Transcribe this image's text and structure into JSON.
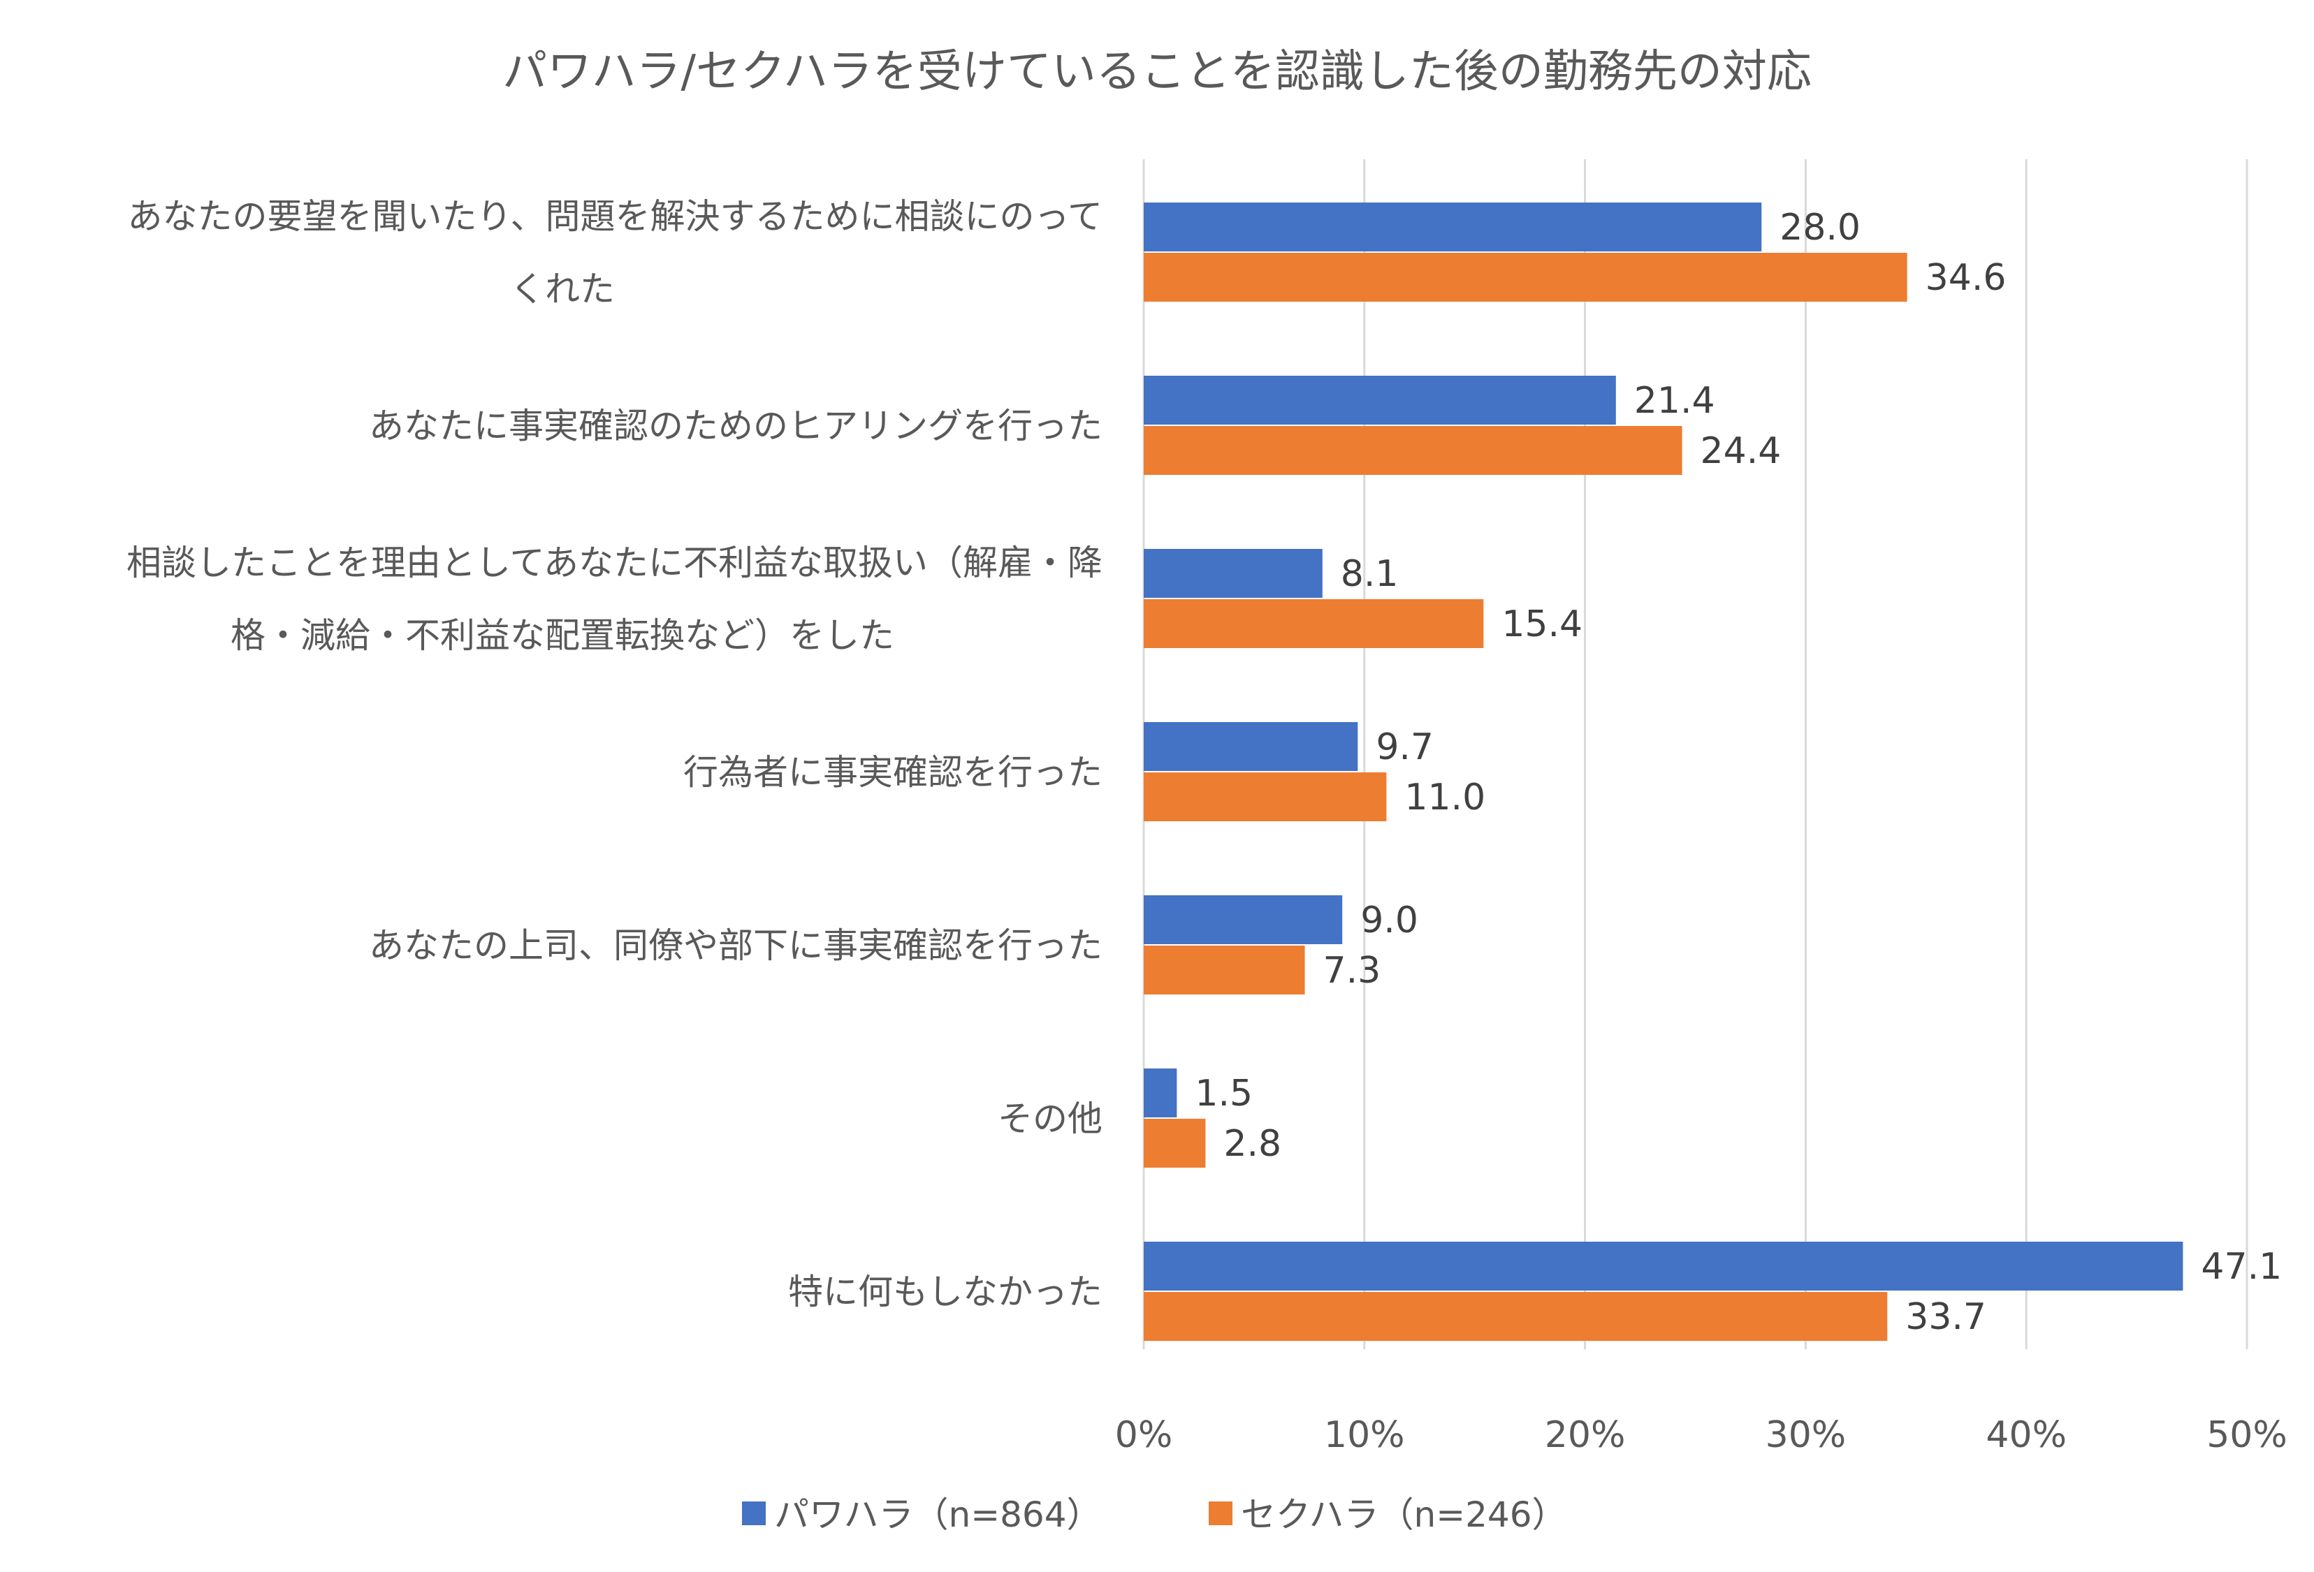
{
  "chart_data": {
    "type": "bar",
    "orientation": "horizontal",
    "title": "パワハラ/セクハラを受けていることを認識した後の勤務先の対応",
    "categories": [
      [
        "あなたの要望を聞いたり、問題を解決するために相談にのって",
        "くれた"
      ],
      [
        "あなたに事実確認のためのヒアリングを行った"
      ],
      [
        "相談したことを理由としてあなたに不利益な取扱い（解雇・降",
        "格・減給・不利益な配置転換など）をした"
      ],
      [
        "行為者に事実確認を行った"
      ],
      [
        "あなたの上司、同僚や部下に事実確認を行った"
      ],
      [
        "その他"
      ],
      [
        "特に何もしなかった"
      ]
    ],
    "series": [
      {
        "name": "パワハラ（n=864）",
        "color": "#4472C4",
        "values": [
          28.0,
          21.4,
          8.1,
          9.7,
          9.0,
          1.5,
          47.1
        ],
        "labels": [
          "28.0",
          "21.4",
          "8.1",
          "9.7",
          "9.0",
          "1.5",
          "47.1"
        ]
      },
      {
        "name": "セクハラ（n=246）",
        "color": "#ED7D31",
        "values": [
          34.6,
          24.4,
          15.4,
          11.0,
          7.3,
          2.8,
          33.7
        ],
        "labels": [
          "34.6",
          "24.4",
          "15.4",
          "11.0",
          "7.3",
          "2.8",
          "33.7"
        ]
      }
    ],
    "xlim": [
      0,
      50
    ],
    "xticks": [
      0,
      10,
      20,
      30,
      40,
      50
    ],
    "xtick_labels": [
      "0%",
      "10%",
      "20%",
      "30%",
      "40%",
      "50%"
    ],
    "grid": true,
    "legend_position": "bottom"
  }
}
